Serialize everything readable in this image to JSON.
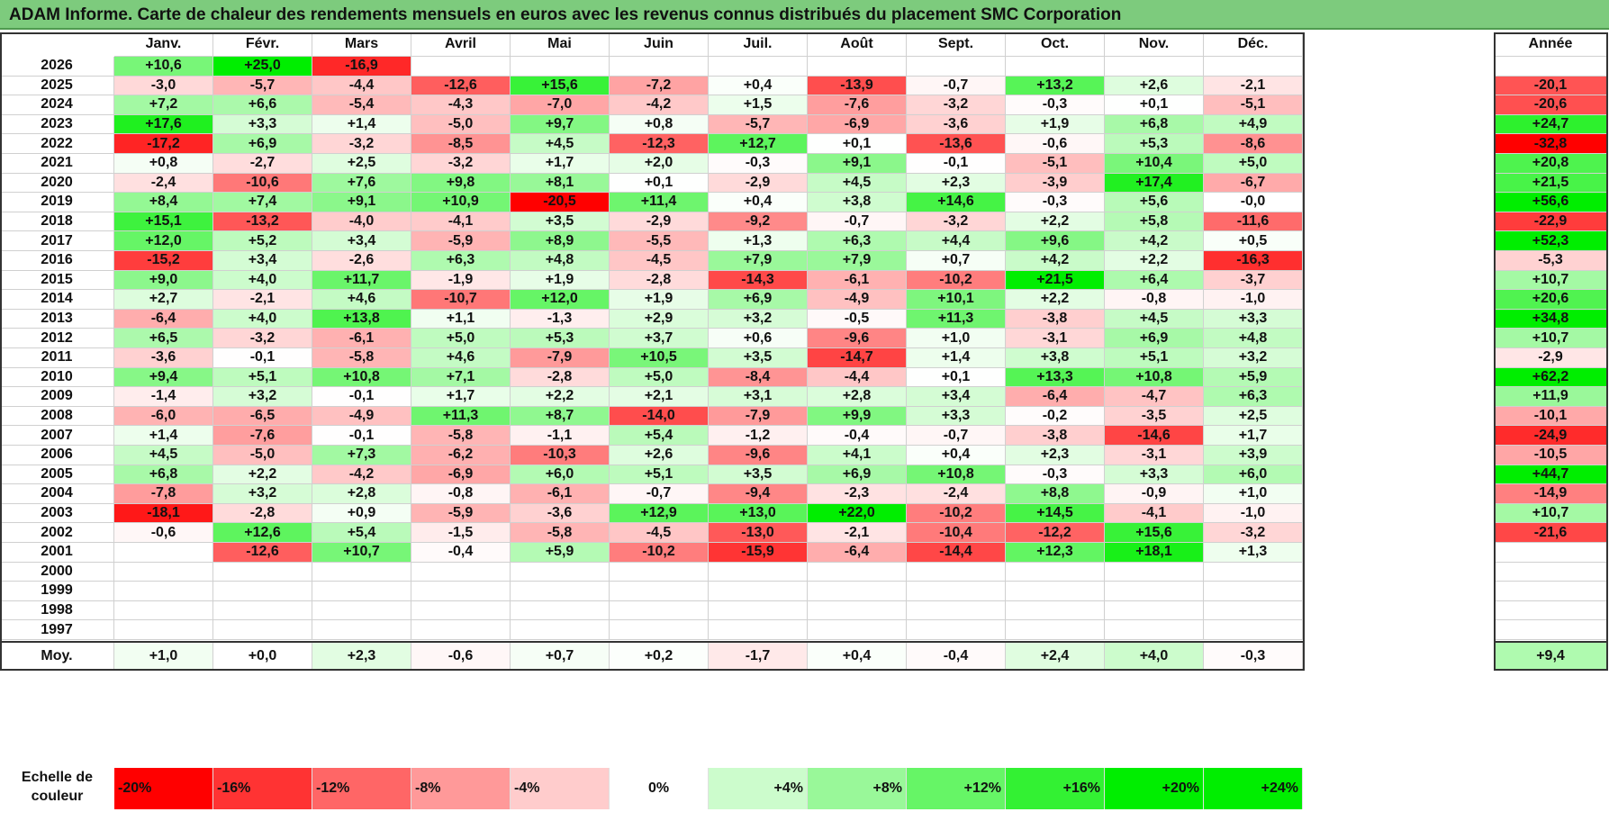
{
  "title": "ADAM Informe. Carte de chaleur des rendements mensuels en euros avec les revenus connus distribués du placement SMC Corporation",
  "chart_data": {
    "type": "heatmap",
    "months": [
      "Janv.",
      "Févr.",
      "Mars",
      "Avril",
      "Mai",
      "Juin",
      "Juil.",
      "Août",
      "Sept.",
      "Oct.",
      "Nov.",
      "Déc."
    ],
    "annual_header": "Année",
    "rows": [
      {
        "year": "2026",
        "values": [
          "+10,6",
          "+25,0",
          "-16,9",
          "",
          "",
          "",
          "",
          "",
          "",
          "",
          "",
          ""
        ],
        "annual": ""
      },
      {
        "year": "2025",
        "values": [
          "-3,0",
          "-5,7",
          "-4,4",
          "-12,6",
          "+15,6",
          "-7,2",
          "+0,4",
          "-13,9",
          "-0,7",
          "+13,2",
          "+2,6",
          "-2,1"
        ],
        "annual": "-20,1"
      },
      {
        "year": "2024",
        "values": [
          "+7,2",
          "+6,6",
          "-5,4",
          "-4,3",
          "-7,0",
          "-4,2",
          "+1,5",
          "-7,6",
          "-3,2",
          "-0,3",
          "+0,1",
          "-5,1"
        ],
        "annual": "-20,6"
      },
      {
        "year": "2023",
        "values": [
          "+17,6",
          "+3,3",
          "+1,4",
          "-5,0",
          "+9,7",
          "+0,8",
          "-5,7",
          "-6,9",
          "-3,6",
          "+1,9",
          "+6,8",
          "+4,9"
        ],
        "annual": "+24,7"
      },
      {
        "year": "2022",
        "values": [
          "-17,2",
          "+6,9",
          "-3,2",
          "-8,5",
          "+4,5",
          "-12,3",
          "+12,7",
          "+0,1",
          "-13,6",
          "-0,6",
          "+5,3",
          "-8,6"
        ],
        "annual": "-32,8"
      },
      {
        "year": "2021",
        "values": [
          "+0,8",
          "-2,7",
          "+2,5",
          "-3,2",
          "+1,7",
          "+2,0",
          "-0,3",
          "+9,1",
          "-0,1",
          "-5,1",
          "+10,4",
          "+5,0"
        ],
        "annual": "+20,8"
      },
      {
        "year": "2020",
        "values": [
          "-2,4",
          "-10,6",
          "+7,6",
          "+9,8",
          "+8,1",
          "+0,1",
          "-2,9",
          "+4,5",
          "+2,3",
          "-3,9",
          "+17,4",
          "-6,7"
        ],
        "annual": "+21,5"
      },
      {
        "year": "2019",
        "values": [
          "+8,4",
          "+7,4",
          "+9,1",
          "+10,9",
          "-20,5",
          "+11,4",
          "+0,4",
          "+3,8",
          "+14,6",
          "-0,3",
          "+5,6",
          "-0,0"
        ],
        "annual": "+56,6"
      },
      {
        "year": "2018",
        "values": [
          "+15,1",
          "-13,2",
          "-4,0",
          "-4,1",
          "+3,5",
          "-2,9",
          "-9,2",
          "-0,7",
          "-3,2",
          "+2,2",
          "+5,8",
          "-11,6"
        ],
        "annual": "-22,9"
      },
      {
        "year": "2017",
        "values": [
          "+12,0",
          "+5,2",
          "+3,4",
          "-5,9",
          "+8,9",
          "-5,5",
          "+1,3",
          "+6,3",
          "+4,4",
          "+9,6",
          "+4,2",
          "+0,5"
        ],
        "annual": "+52,3"
      },
      {
        "year": "2016",
        "values": [
          "-15,2",
          "+3,4",
          "-2,6",
          "+6,3",
          "+4,8",
          "-4,5",
          "+7,9",
          "+7,9",
          "+0,7",
          "+4,2",
          "+2,2",
          "-16,3"
        ],
        "annual": "-5,3"
      },
      {
        "year": "2015",
        "values": [
          "+9,0",
          "+4,0",
          "+11,7",
          "-1,9",
          "+1,9",
          "-2,8",
          "-14,3",
          "-6,1",
          "-10,2",
          "+21,5",
          "+6,4",
          "-3,7"
        ],
        "annual": "+10,7"
      },
      {
        "year": "2014",
        "values": [
          "+2,7",
          "-2,1",
          "+4,6",
          "-10,7",
          "+12,0",
          "+1,9",
          "+6,9",
          "-4,9",
          "+10,1",
          "+2,2",
          "-0,8",
          "-1,0"
        ],
        "annual": "+20,6"
      },
      {
        "year": "2013",
        "values": [
          "-6,4",
          "+4,0",
          "+13,8",
          "+1,1",
          "-1,3",
          "+2,9",
          "+3,2",
          "-0,5",
          "+11,3",
          "-3,8",
          "+4,5",
          "+3,3"
        ],
        "annual": "+34,8"
      },
      {
        "year": "2012",
        "values": [
          "+6,5",
          "-3,2",
          "-6,1",
          "+5,0",
          "+5,3",
          "+3,7",
          "+0,6",
          "-9,6",
          "+1,0",
          "-3,1",
          "+6,9",
          "+4,8"
        ],
        "annual": "+10,7"
      },
      {
        "year": "2011",
        "values": [
          "-3,6",
          "-0,1",
          "-5,8",
          "+4,6",
          "-7,9",
          "+10,5",
          "+3,5",
          "-14,7",
          "+1,4",
          "+3,8",
          "+5,1",
          "+3,2"
        ],
        "annual": "-2,9"
      },
      {
        "year": "2010",
        "values": [
          "+9,4",
          "+5,1",
          "+10,8",
          "+7,1",
          "-2,8",
          "+5,0",
          "-8,4",
          "-4,4",
          "+0,1",
          "+13,3",
          "+10,8",
          "+5,9"
        ],
        "annual": "+62,2"
      },
      {
        "year": "2009",
        "values": [
          "-1,4",
          "+3,2",
          "-0,1",
          "+1,7",
          "+2,2",
          "+2,1",
          "+3,1",
          "+2,8",
          "+3,4",
          "-6,4",
          "-4,7",
          "+6,3"
        ],
        "annual": "+11,9"
      },
      {
        "year": "2008",
        "values": [
          "-6,0",
          "-6,5",
          "-4,9",
          "+11,3",
          "+8,7",
          "-14,0",
          "-7,9",
          "+9,9",
          "+3,3",
          "-0,2",
          "-3,5",
          "+2,5"
        ],
        "annual": "-10,1"
      },
      {
        "year": "2007",
        "values": [
          "+1,4",
          "-7,6",
          "-0,1",
          "-5,8",
          "-1,1",
          "+5,4",
          "-1,2",
          "-0,4",
          "-0,7",
          "-3,8",
          "-14,6",
          "+1,7"
        ],
        "annual": "-24,9"
      },
      {
        "year": "2006",
        "values": [
          "+4,5",
          "-5,0",
          "+7,3",
          "-6,2",
          "-10,3",
          "+2,6",
          "-9,6",
          "+4,1",
          "+0,4",
          "+2,3",
          "-3,1",
          "+3,9"
        ],
        "annual": "-10,5"
      },
      {
        "year": "2005",
        "values": [
          "+6,8",
          "+2,2",
          "-4,2",
          "-6,9",
          "+6,0",
          "+5,1",
          "+3,5",
          "+6,9",
          "+10,8",
          "-0,3",
          "+3,3",
          "+6,0"
        ],
        "annual": "+44,7"
      },
      {
        "year": "2004",
        "values": [
          "-7,8",
          "+3,2",
          "+2,8",
          "-0,8",
          "-6,1",
          "-0,7",
          "-9,4",
          "-2,3",
          "-2,4",
          "+8,8",
          "-0,9",
          "+1,0"
        ],
        "annual": "-14,9"
      },
      {
        "year": "2003",
        "values": [
          "-18,1",
          "-2,8",
          "+0,9",
          "-5,9",
          "-3,6",
          "+12,9",
          "+13,0",
          "+22,0",
          "-10,2",
          "+14,5",
          "-4,1",
          "-1,0"
        ],
        "annual": "+10,7"
      },
      {
        "year": "2002",
        "values": [
          "-0,6",
          "+12,6",
          "+5,4",
          "-1,5",
          "-5,8",
          "-4,5",
          "-13,0",
          "-2,1",
          "-10,4",
          "-12,2",
          "+15,6",
          "-3,2"
        ],
        "annual": "-21,6"
      },
      {
        "year": "2001",
        "values": [
          "",
          "-12,6",
          "+10,7",
          "-0,4",
          "+5,9",
          "-10,2",
          "-15,9",
          "-6,4",
          "-14,4",
          "+12,3",
          "+18,1",
          "+1,3"
        ],
        "annual": ""
      },
      {
        "year": "2000",
        "values": [
          "",
          "",
          "",
          "",
          "",
          "",
          "",
          "",
          "",
          "",
          "",
          ""
        ],
        "annual": ""
      },
      {
        "year": "1999",
        "values": [
          "",
          "",
          "",
          "",
          "",
          "",
          "",
          "",
          "",
          "",
          "",
          ""
        ],
        "annual": ""
      },
      {
        "year": "1998",
        "values": [
          "",
          "",
          "",
          "",
          "",
          "",
          "",
          "",
          "",
          "",
          "",
          ""
        ],
        "annual": ""
      },
      {
        "year": "1997",
        "values": [
          "",
          "",
          "",
          "",
          "",
          "",
          "",
          "",
          "",
          "",
          "",
          ""
        ],
        "annual": ""
      }
    ],
    "average": {
      "label": "Moy.",
      "values": [
        "+1,0",
        "+0,0",
        "+2,3",
        "-0,6",
        "+0,7",
        "+0,2",
        "-1,7",
        "+0,4",
        "-0,4",
        "+2,4",
        "+4,0",
        "-0,3"
      ],
      "annual": "+9,4"
    },
    "legend": {
      "label": "Echelle de couleur",
      "stops": [
        "-20%",
        "-16%",
        "-12%",
        "-8%",
        "-4%",
        "0%",
        "+4%",
        "+8%",
        "+12%",
        "+16%",
        "+20%",
        "+24%"
      ]
    },
    "colors": {
      "neg_strong": "#ff0000",
      "pos_strong": "#00ee00",
      "neutral": "#ffffff"
    }
  }
}
